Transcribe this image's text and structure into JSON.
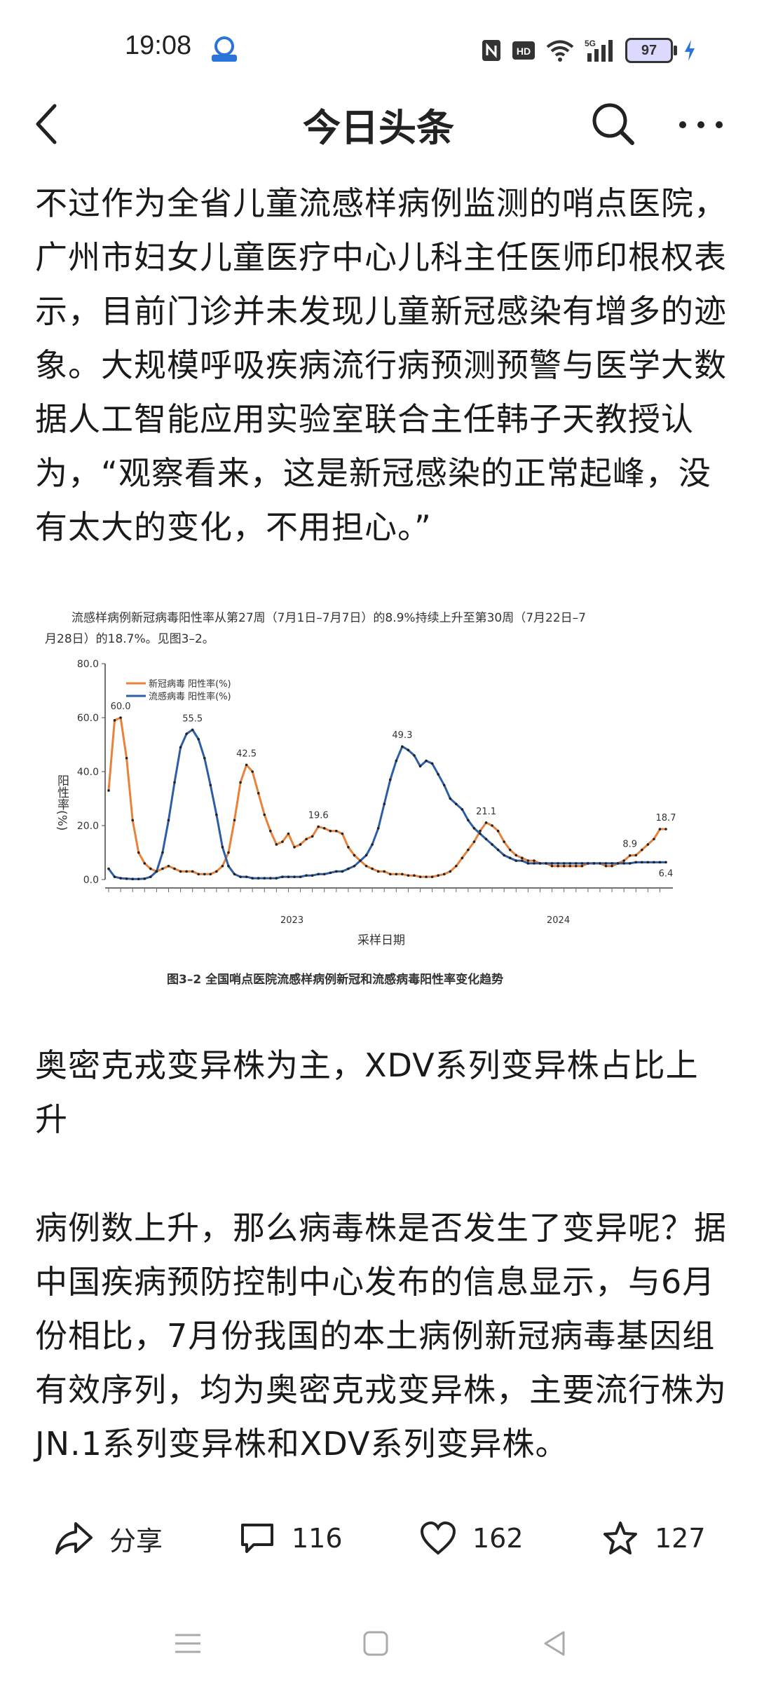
{
  "status_bar": {
    "time": "19:08",
    "battery": "97",
    "icons": [
      "nfc-icon",
      "hd-icon",
      "wifi-icon",
      "5g-signal-icon",
      "battery-icon",
      "charging-icon"
    ]
  },
  "header": {
    "title": "今日头条",
    "icons": [
      "back-arrow-icon",
      "search-icon",
      "more-icon"
    ]
  },
  "article": {
    "paragraph1": "不过作为全省儿童流感样病例监测的哨点医院，广州市妇女儿童医疗中心儿科主任医师印根权表示，目前门诊并未发现儿童新冠感染有增多的迹象。大规模呼吸疾病流行病预测预警与医学大数据人工智能应用实验室联合主任韩子天教授认为，“观察看来，这是新冠感染的正常起峰，没有太大的变化，不用担心。”",
    "heading": "奥密克戎变异株为主，XDV系列变异株占比上升",
    "paragraph2": "病例数上升，那么病毒株是否发生了变异呢？据中国疾病预防控制中心发布的信息显示，与6月份相比，7月份我国的本土病例新冠病毒基因组有效序列，均为奥密克戎变异株，主要流行株为JN.1系列变异株和XDV系列变异株。"
  },
  "figure": {
    "intro_line1": "流感样病例新冠病毒阳性率从第27周（7月1日–7月7日）的8.9%持续上升至第30周（7月22日–7",
    "intro_line2": "月28日）的18.7%。见图3–2。",
    "caption": "图3–2  全国哨点医院流感样病例新冠和流感病毒阳性率变化趋势"
  },
  "chart_data": {
    "type": "line",
    "title": "",
    "xlabel": "采样日期",
    "ylabel": "阳性率(%)",
    "ylim": [
      0,
      80
    ],
    "yticks": [
      "0.0",
      "20.0",
      "40.0",
      "60.0",
      "80.0"
    ],
    "year_labels": [
      "2023",
      "2024"
    ],
    "legend_position": "top-left",
    "grid": false,
    "x": [
      0,
      1,
      2,
      3,
      4,
      5,
      6,
      7,
      8,
      9,
      10,
      11,
      12,
      13,
      14,
      15,
      16,
      17,
      18,
      19,
      20,
      21,
      22,
      23,
      24,
      25,
      26,
      27,
      28,
      29,
      30,
      31,
      32,
      33,
      34,
      35,
      36,
      37,
      38,
      39,
      40,
      41,
      42,
      43,
      44,
      45,
      46,
      47,
      48,
      49,
      50,
      51,
      52,
      53,
      54,
      55,
      56,
      57,
      58,
      59,
      60,
      61,
      62,
      63,
      64,
      65,
      66,
      67,
      68,
      69,
      70,
      71,
      72,
      73,
      74,
      75,
      76,
      77,
      78,
      79,
      80,
      81,
      82,
      83,
      84,
      85,
      86,
      87,
      88,
      89,
      90,
      91,
      92,
      93
    ],
    "series": [
      {
        "name": "新冠病毒 阳性率(%)",
        "color": "#e8813a",
        "values": [
          33,
          59,
          60,
          45,
          22,
          10,
          6,
          4,
          3,
          4,
          5,
          4,
          3,
          3,
          3,
          2,
          2,
          2,
          3,
          5,
          10,
          22,
          36,
          42.5,
          40,
          32,
          24,
          18,
          13,
          14,
          17,
          12,
          13,
          15,
          16,
          19.6,
          19,
          18,
          18,
          17,
          12,
          9,
          7,
          5,
          4,
          3,
          3,
          2,
          2,
          2,
          1.5,
          1.5,
          1,
          1,
          1,
          1.5,
          2,
          3,
          5,
          8,
          11,
          14,
          18,
          21.1,
          20,
          18,
          14,
          11,
          9,
          8,
          7,
          7,
          6,
          6,
          5,
          5,
          5,
          5,
          5,
          5,
          6,
          6,
          6,
          5,
          5,
          6,
          7,
          8.9,
          9,
          11,
          13,
          15,
          18.7,
          18.7
        ]
      },
      {
        "name": "流感病毒 阳性率(%)",
        "color": "#2e5da8",
        "values": [
          4,
          1,
          0.5,
          0.3,
          0.2,
          0.2,
          0.3,
          1,
          3,
          10,
          22,
          36,
          49,
          54,
          55.5,
          52,
          45,
          35,
          24,
          12,
          5,
          2,
          1,
          1,
          0.5,
          0.5,
          0.5,
          0.5,
          0.5,
          1,
          1,
          1,
          1,
          1.5,
          1.5,
          2,
          2,
          2.5,
          3,
          3,
          4,
          5,
          7,
          9,
          13,
          19,
          28,
          37,
          44,
          49.3,
          48,
          46,
          42,
          44,
          43,
          39,
          35,
          30,
          28,
          26,
          22,
          19,
          17,
          15,
          13,
          11,
          9,
          8,
          7,
          7,
          6,
          6,
          6,
          6,
          6,
          6,
          6,
          6,
          6,
          6,
          6,
          6,
          6,
          6,
          6,
          6,
          6,
          6,
          6.4,
          6.4,
          6.4,
          6.4,
          6.4,
          6.4
        ],
        "labels": [
          "55.5",
          "49.3",
          "6.4"
        ]
      }
    ],
    "data_labels": [
      "60.0",
      "42.5",
      "19.6",
      "21.1",
      "8.9",
      "18.7",
      "55.5",
      "49.3",
      "6.4"
    ]
  },
  "actions": {
    "share_label": "分享",
    "comments": "116",
    "likes": "162",
    "favorites": "127"
  }
}
